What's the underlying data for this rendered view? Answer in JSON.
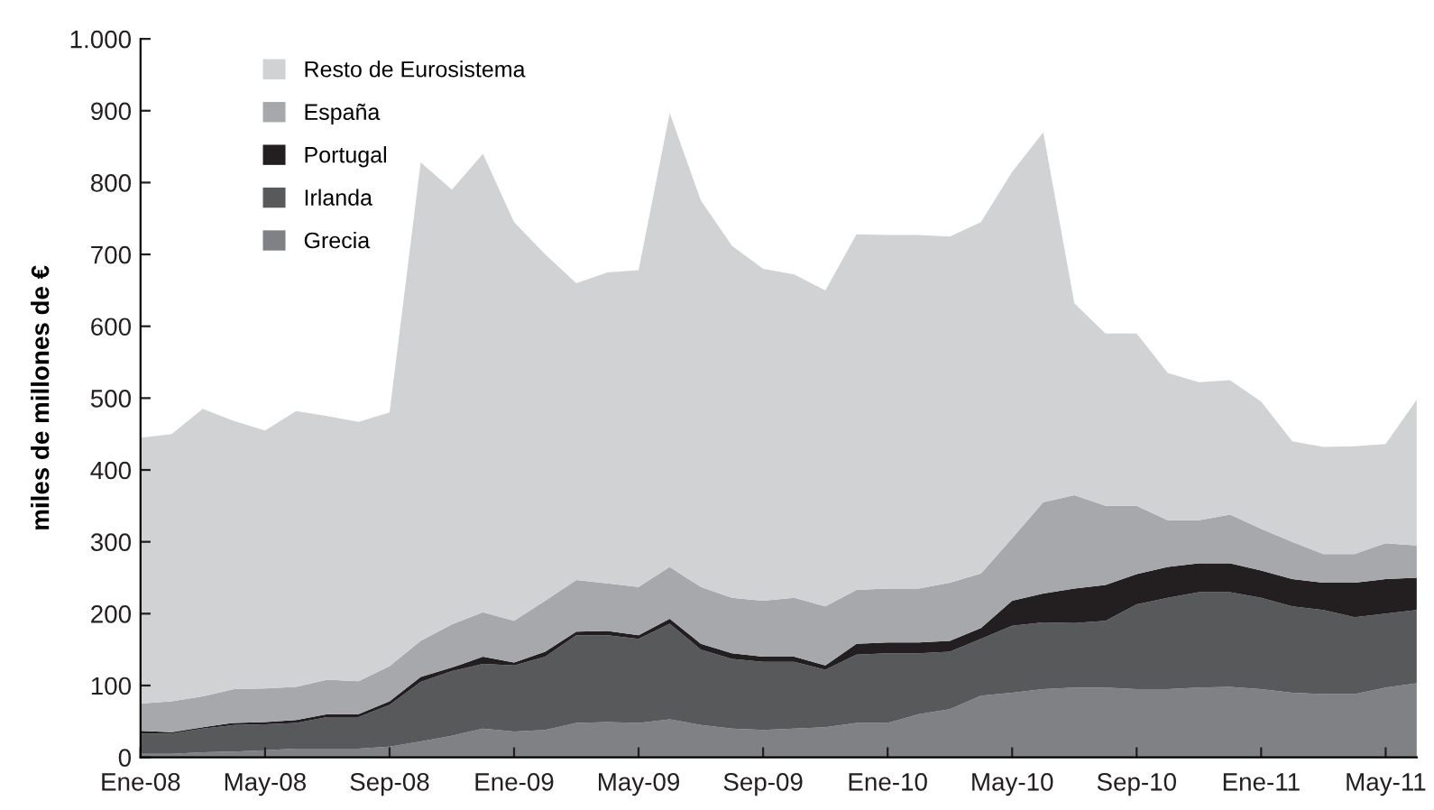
{
  "chart_data": {
    "type": "area",
    "stacked": true,
    "ylabel": "miles de millones de €",
    "x": [
      "2008-01",
      "2008-02",
      "2008-03",
      "2008-04",
      "2008-05",
      "2008-06",
      "2008-07",
      "2008-08",
      "2008-09",
      "2008-10",
      "2008-11",
      "2008-12",
      "2009-01",
      "2009-02",
      "2009-03",
      "2009-04",
      "2009-05",
      "2009-06",
      "2009-07",
      "2009-08",
      "2009-09",
      "2009-10",
      "2009-11",
      "2009-12",
      "2010-01",
      "2010-02",
      "2010-03",
      "2010-04",
      "2010-05",
      "2010-06",
      "2010-07",
      "2010-08",
      "2010-09",
      "2010-10",
      "2010-11",
      "2010-12",
      "2011-01",
      "2011-02",
      "2011-03",
      "2011-04",
      "2011-05",
      "2011-06"
    ],
    "series": [
      {
        "name": "Grecia",
        "color": "#808184",
        "values": [
          5,
          5,
          7,
          8,
          10,
          12,
          12,
          12,
          15,
          22,
          30,
          40,
          36,
          38,
          48,
          49,
          48,
          53,
          45,
          40,
          38,
          40,
          42,
          48,
          48,
          60,
          67,
          86,
          90,
          95,
          97,
          97,
          95,
          95,
          97,
          98,
          95,
          90,
          88,
          88,
          97,
          103
        ]
      },
      {
        "name": "Irlanda",
        "color": "#58595b",
        "values": [
          28,
          28,
          33,
          37,
          36,
          36,
          44,
          44,
          58,
          83,
          90,
          90,
          92,
          102,
          122,
          121,
          117,
          133,
          105,
          97,
          95,
          93,
          80,
          95,
          97,
          85,
          80,
          79,
          93,
          93,
          90,
          93,
          118,
          127,
          133,
          132,
          127,
          120,
          117,
          107,
          103,
          102
        ]
      },
      {
        "name": "Portugal",
        "color": "#231f20",
        "values": [
          4,
          2,
          2,
          3,
          3,
          4,
          4,
          4,
          5,
          7,
          5,
          10,
          4,
          7,
          5,
          6,
          5,
          7,
          8,
          8,
          7,
          7,
          6,
          15,
          15,
          15,
          15,
          15,
          35,
          40,
          48,
          50,
          42,
          43,
          40,
          40,
          38,
          38,
          38,
          48,
          48,
          45
        ]
      },
      {
        "name": "España",
        "color": "#a7a8ab",
        "values": [
          38,
          43,
          43,
          47,
          47,
          46,
          48,
          46,
          49,
          50,
          60,
          62,
          58,
          71,
          72,
          66,
          67,
          72,
          79,
          77,
          78,
          82,
          82,
          75,
          75,
          75,
          81,
          76,
          87,
          127,
          130,
          110,
          95,
          65,
          60,
          68,
          58,
          52,
          40,
          40,
          50,
          45
        ]
      },
      {
        "name": "Resto de Eurosistema",
        "color": "#d1d2d4",
        "values": [
          370,
          372,
          400,
          373,
          359,
          384,
          367,
          361,
          353,
          666,
          605,
          638,
          555,
          482,
          413,
          433,
          441,
          632,
          538,
          490,
          462,
          450,
          440,
          495,
          492,
          492,
          482,
          489,
          510,
          515,
          267,
          240,
          240,
          205,
          192,
          187,
          177,
          140,
          149,
          150,
          138,
          203
        ]
      }
    ],
    "xlim": [
      "2008-01",
      "2011-06"
    ],
    "xticks": [
      {
        "value": "2008-01",
        "label": "Ene-08"
      },
      {
        "value": "2008-05",
        "label": "May-08"
      },
      {
        "value": "2008-09",
        "label": "Sep-08"
      },
      {
        "value": "2009-01",
        "label": "Ene-09"
      },
      {
        "value": "2009-05",
        "label": "May-09"
      },
      {
        "value": "2009-09",
        "label": "Sep-09"
      },
      {
        "value": "2010-01",
        "label": "Ene-10"
      },
      {
        "value": "2010-05",
        "label": "May-10"
      },
      {
        "value": "2010-09",
        "label": "Sep-10"
      },
      {
        "value": "2011-01",
        "label": "Ene-11"
      },
      {
        "value": "2011-05",
        "label": "May-11"
      }
    ],
    "ylim": [
      0,
      1000
    ],
    "yticks": [
      0,
      100,
      200,
      300,
      400,
      500,
      600,
      700,
      800,
      900,
      {
        "value": 1000,
        "label": "1.000"
      }
    ],
    "grid": false,
    "legend": "top left"
  }
}
